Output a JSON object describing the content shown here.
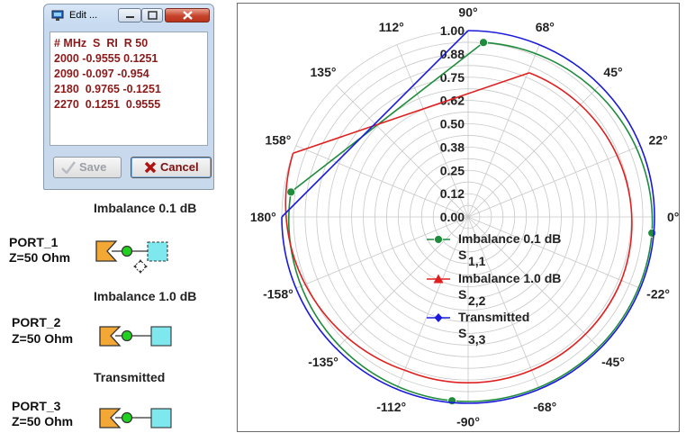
{
  "edit_window": {
    "title": "Edit ...",
    "lines": [
      "# MHz  S  RI  R 50",
      "2000 -0.9555 0.1251",
      "2090 -0.097 -0.954",
      "2180  0.9765 -0.1251",
      "2270  0.1251  0.9555"
    ],
    "save_label": "Save",
    "cancel_label": "Cancel"
  },
  "schematic": {
    "labels": [
      "Imbalance 0.1 dB",
      "Imbalance 1.0 dB",
      "Transmitted"
    ],
    "ports": [
      {
        "name": "PORT_1",
        "impedance": "Z=50 Ohm",
        "dashed": true
      },
      {
        "name": "PORT_2",
        "impedance": "Z=50 Ohm",
        "dashed": false
      },
      {
        "name": "PORT_3",
        "impedance": "Z=50 Ohm",
        "dashed": false
      }
    ]
  },
  "chart_data": {
    "type": "polar",
    "radial_ticks": [
      "0.00",
      "0.12",
      "0.25",
      "0.38",
      "0.50",
      "0.62",
      "0.75",
      "0.88",
      "1.00"
    ],
    "r_range": [
      0,
      1
    ],
    "angle_labels": [
      {
        "deg": 90,
        "text": "90°"
      },
      {
        "deg": 68,
        "text": "68°"
      },
      {
        "deg": 45,
        "text": "45°"
      },
      {
        "deg": 22,
        "text": "22°"
      },
      {
        "deg": 0,
        "text": "0°"
      },
      {
        "deg": -22,
        "text": "-22°"
      },
      {
        "deg": -45,
        "text": "-45°"
      },
      {
        "deg": -68,
        "text": "-68°"
      },
      {
        "deg": -90,
        "text": "-90°"
      },
      {
        "deg": -112,
        "text": "-112°"
      },
      {
        "deg": -135,
        "text": "-135°"
      },
      {
        "deg": -158,
        "text": "-158°"
      },
      {
        "deg": 180,
        "text": "180°"
      },
      {
        "deg": 158,
        "text": "158°"
      },
      {
        "deg": 135,
        "text": "135°"
      },
      {
        "deg": 112,
        "text": "112°"
      }
    ],
    "grid": true,
    "legend_position": "center",
    "series": [
      {
        "name": "Imbalance 0.1 dB",
        "sub": "S",
        "idx": "1,1",
        "color": "#1e8c3c",
        "marker": "circle",
        "points": [
          {
            "r": 0.94,
            "deg": 85
          },
          {
            "r": 0.99,
            "deg": -5
          },
          {
            "r": 0.99,
            "deg": -95
          },
          {
            "r": 0.96,
            "deg": 172
          }
        ]
      },
      {
        "name": "Imbalance 1.0 dB",
        "sub": "S",
        "idx": "2,2",
        "color": "#e02020",
        "marker": "triangle",
        "points": [
          {
            "r": 0.84,
            "deg": 67
          },
          {
            "r": 0.89,
            "deg": -23
          },
          {
            "r": 0.89,
            "deg": -112
          },
          {
            "r": 1.0,
            "deg": 160
          }
        ]
      },
      {
        "name": "Transmitted",
        "sub": "S",
        "idx": "3,3",
        "color": "#1a1adc",
        "marker": "diamond",
        "points": [
          {
            "r": 1.0,
            "deg": 90
          },
          {
            "r": 1.0,
            "deg": 0
          },
          {
            "r": 1.0,
            "deg": -90
          },
          {
            "r": 1.0,
            "deg": 180
          }
        ]
      }
    ]
  }
}
